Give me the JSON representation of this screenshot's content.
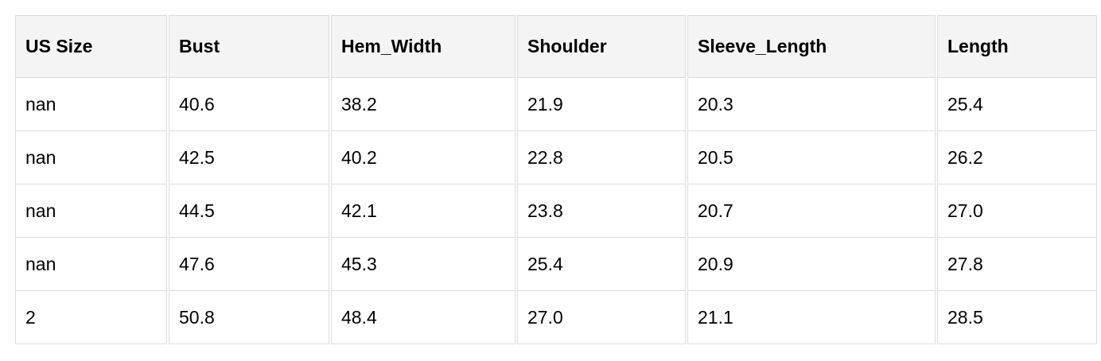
{
  "table": {
    "headers": [
      "US Size",
      "Bust",
      "Hem_Width",
      "Shoulder",
      "Sleeve_Length",
      "Length"
    ],
    "rows": [
      [
        "nan",
        "40.6",
        "38.2",
        "21.9",
        "20.3",
        "25.4"
      ],
      [
        "nan",
        "42.5",
        "40.2",
        "22.8",
        "20.5",
        "26.2"
      ],
      [
        "nan",
        "44.5",
        "42.1",
        "23.8",
        "20.7",
        "27.0"
      ],
      [
        "nan",
        "47.6",
        "45.3",
        "25.4",
        "20.9",
        "27.8"
      ],
      [
        "2",
        "50.8",
        "48.4",
        "27.0",
        "21.1",
        "28.5"
      ]
    ]
  }
}
